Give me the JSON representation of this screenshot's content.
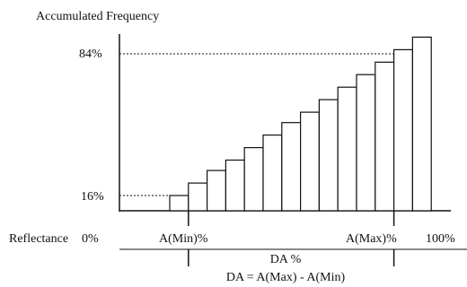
{
  "chart_data": {
    "type": "bar",
    "ylabel": "Accumulated Frequency",
    "y_ticks": [
      "16%",
      "84%"
    ],
    "x_label_left": "Reflectance",
    "x_ticks": [
      "0%",
      "A(Min)%",
      "A(Max)%",
      "100%"
    ],
    "bars": [
      16,
      22,
      28,
      33,
      39,
      45,
      51,
      56,
      62,
      68,
      74,
      80,
      86,
      92
    ],
    "y_range": [
      0,
      100
    ],
    "min_bar_index": 1,
    "max_bar_index": 12,
    "span_label": "DA %",
    "formula": "DA = A(Max) - A(Min)"
  }
}
